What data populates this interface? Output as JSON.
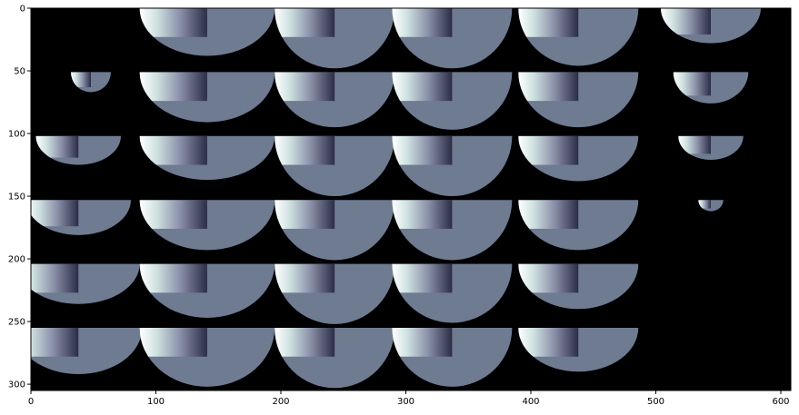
{
  "chart_data": {
    "type": "heatmap",
    "title": "",
    "xlabel": "",
    "ylabel": "",
    "xlim": [
      0,
      608
    ],
    "ylim": [
      305,
      0
    ],
    "x_ticks": [
      0,
      100,
      200,
      300,
      400,
      500,
      600
    ],
    "y_ticks": [
      0,
      50,
      100,
      150,
      200,
      250,
      300
    ],
    "x_tick_labels": [
      "0",
      "100",
      "200",
      "300",
      "400",
      "500",
      "600"
    ],
    "y_tick_labels": [
      "0",
      "50",
      "100",
      "150",
      "200",
      "250",
      "300"
    ],
    "grid": false,
    "background_color": "#000000",
    "body_color": "#6e7b91",
    "shade_dark": "#2a2d45",
    "shade_light": "#ffffff",
    "rows": [
      {
        "top": 0,
        "tiles": [
          {
            "cx": 141,
            "r": 54,
            "h": 38
          },
          {
            "cx": 243,
            "r": 48,
            "h": 48
          },
          {
            "cx": 337,
            "r": 48,
            "h": 48
          },
          {
            "cx": 438,
            "r": 48,
            "h": 46
          },
          {
            "cx": 544,
            "r": 40,
            "h": 28
          }
        ]
      },
      {
        "top": 51,
        "tiles": [
          {
            "cx": 48,
            "r": 16,
            "h": 16
          },
          {
            "cx": 141,
            "r": 54,
            "h": 40
          },
          {
            "cx": 243,
            "r": 48,
            "h": 44
          },
          {
            "cx": 337,
            "r": 48,
            "h": 46
          },
          {
            "cx": 438,
            "r": 48,
            "h": 44
          },
          {
            "cx": 544,
            "r": 30,
            "h": 25
          }
        ]
      },
      {
        "top": 102,
        "tiles": [
          {
            "cx": 38,
            "r": 34,
            "h": 23
          },
          {
            "cx": 141,
            "r": 54,
            "h": 35
          },
          {
            "cx": 243,
            "r": 48,
            "h": 48
          },
          {
            "cx": 337,
            "r": 48,
            "h": 48
          },
          {
            "cx": 438,
            "r": 48,
            "h": 36
          },
          {
            "cx": 544,
            "r": 26,
            "h": 19
          }
        ]
      },
      {
        "top": 153,
        "tiles": [
          {
            "cx": 38,
            "r": 42,
            "h": 28
          },
          {
            "cx": 141,
            "r": 54,
            "h": 40
          },
          {
            "cx": 243,
            "r": 48,
            "h": 48
          },
          {
            "cx": 337,
            "r": 48,
            "h": 48
          },
          {
            "cx": 438,
            "r": 48,
            "h": 40
          },
          {
            "cx": 544,
            "r": 10,
            "h": 9
          }
        ]
      },
      {
        "top": 204,
        "tiles": [
          {
            "cx": 38,
            "r": 49,
            "h": 32
          },
          {
            "cx": 141,
            "r": 54,
            "h": 43
          },
          {
            "cx": 243,
            "r": 48,
            "h": 48
          },
          {
            "cx": 337,
            "r": 48,
            "h": 47
          },
          {
            "cx": 438,
            "r": 48,
            "h": 36
          }
        ]
      },
      {
        "top": 255,
        "tiles": [
          {
            "cx": 38,
            "r": 51,
            "h": 37
          },
          {
            "cx": 141,
            "r": 54,
            "h": 47
          },
          {
            "cx": 243,
            "r": 48,
            "h": 48
          },
          {
            "cx": 337,
            "r": 48,
            "h": 47
          },
          {
            "cx": 438,
            "r": 48,
            "h": 35
          }
        ]
      }
    ]
  }
}
